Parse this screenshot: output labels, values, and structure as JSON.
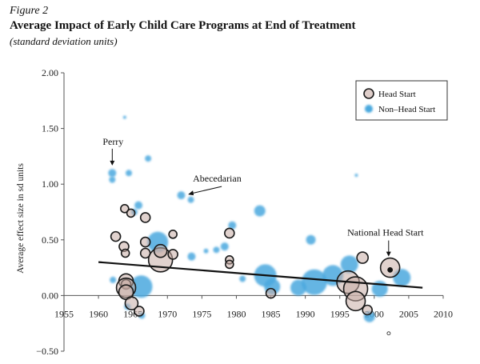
{
  "figure": {
    "label": "Figure 2",
    "title": "Average Impact of Early Child Care Programs at End of Treatment",
    "subtitle": "(standard deviation units)"
  },
  "chart_data": {
    "type": "scatter",
    "ylabel": "Average effect size in sd units",
    "xlim": [
      1955,
      2010
    ],
    "ylim": [
      -0.5,
      2.0
    ],
    "x_ticks": [
      "1955",
      "1960",
      "1965",
      "1970",
      "1975",
      "1980",
      "1985",
      "1990",
      "1995",
      "2000",
      "2005",
      "2010"
    ],
    "y_ticks": [
      "−0.50",
      "0.00",
      "0.50",
      "1.00",
      "1.50",
      "2.00"
    ],
    "legend": {
      "position": "top-right",
      "entries": [
        "Head Start",
        "Non–Head Start"
      ]
    },
    "colors": {
      "head_start": "#c9ada6",
      "non_head_start": "#4aa8de",
      "trend": "#111111",
      "axis": "#555555"
    },
    "annotations": [
      {
        "text": "Perry",
        "x": 1962.0,
        "y": 1.11
      },
      {
        "text": "Abecedarian",
        "x": 1972.3,
        "y": 0.9
      },
      {
        "text": "National Head Start",
        "x": 2002.2,
        "y": 0.25
      }
    ],
    "trend_line": {
      "x": [
        1960,
        2007
      ],
      "y": [
        0.3,
        0.07
      ]
    },
    "series": [
      {
        "name": "Head Start",
        "points": [
          {
            "x": 1962.5,
            "y": 0.53,
            "r": 6
          },
          {
            "x": 1963.8,
            "y": 0.78,
            "r": 5
          },
          {
            "x": 1963.7,
            "y": 0.44,
            "r": 6
          },
          {
            "x": 1963.9,
            "y": 0.38,
            "r": 5
          },
          {
            "x": 1964.7,
            "y": 0.74,
            "r": 5
          },
          {
            "x": 1964.0,
            "y": 0.13,
            "r": 9
          },
          {
            "x": 1964.0,
            "y": 0.1,
            "r": 6
          },
          {
            "x": 1964.0,
            "y": 0.07,
            "r": 12
          },
          {
            "x": 1964.0,
            "y": 0.03,
            "r": 9
          },
          {
            "x": 1964.8,
            "y": -0.07,
            "r": 8
          },
          {
            "x": 1965.9,
            "y": -0.14,
            "r": 6
          },
          {
            "x": 1966.8,
            "y": 0.7,
            "r": 6
          },
          {
            "x": 1966.8,
            "y": 0.48,
            "r": 6
          },
          {
            "x": 1966.8,
            "y": 0.38,
            "r": 6
          },
          {
            "x": 1969.0,
            "y": 0.32,
            "r": 15
          },
          {
            "x": 1969.0,
            "y": 0.4,
            "r": 8
          },
          {
            "x": 1970.8,
            "y": 0.55,
            "r": 5
          },
          {
            "x": 1970.8,
            "y": 0.37,
            "r": 6
          },
          {
            "x": 1979.0,
            "y": 0.56,
            "r": 6
          },
          {
            "x": 1979.0,
            "y": 0.32,
            "r": 5
          },
          {
            "x": 1979.0,
            "y": 0.28,
            "r": 5
          },
          {
            "x": 1985.0,
            "y": 0.02,
            "r": 6
          },
          {
            "x": 1996.2,
            "y": 0.12,
            "r": 14
          },
          {
            "x": 1997.3,
            "y": 0.06,
            "r": 15
          },
          {
            "x": 1997.3,
            "y": -0.05,
            "r": 12
          },
          {
            "x": 1998.3,
            "y": 0.34,
            "r": 7
          },
          {
            "x": 1999.0,
            "y": -0.13,
            "r": 6
          },
          {
            "x": 2002.3,
            "y": 0.25,
            "r": 12
          },
          {
            "x": 2002.3,
            "y": 0.23,
            "r": 3
          },
          {
            "x": 2002.1,
            "y": -0.34,
            "r": 2
          }
        ]
      },
      {
        "name": "Non–Head Start",
        "points": [
          {
            "x": 1962.0,
            "y": 1.1,
            "r": 5
          },
          {
            "x": 1962.0,
            "y": 1.04,
            "r": 4
          },
          {
            "x": 1962.1,
            "y": 0.14,
            "r": 4
          },
          {
            "x": 1963.8,
            "y": 1.6,
            "r": 2
          },
          {
            "x": 1964.4,
            "y": 1.1,
            "r": 4
          },
          {
            "x": 1964.2,
            "y": -0.1,
            "r": 4
          },
          {
            "x": 1965.2,
            "y": 0.75,
            "r": 4
          },
          {
            "x": 1965.8,
            "y": 0.81,
            "r": 5
          },
          {
            "x": 1966.2,
            "y": 0.08,
            "r": 14
          },
          {
            "x": 1966.3,
            "y": -0.18,
            "r": 4
          },
          {
            "x": 1967.2,
            "y": 1.23,
            "r": 4
          },
          {
            "x": 1968.6,
            "y": 0.48,
            "r": 13
          },
          {
            "x": 1972.0,
            "y": 0.9,
            "r": 5
          },
          {
            "x": 1973.4,
            "y": 0.86,
            "r": 4
          },
          {
            "x": 1973.5,
            "y": 0.35,
            "r": 5
          },
          {
            "x": 1975.6,
            "y": 0.4,
            "r": 3
          },
          {
            "x": 1977.1,
            "y": 0.41,
            "r": 4
          },
          {
            "x": 1978.3,
            "y": 0.44,
            "r": 5
          },
          {
            "x": 1979.4,
            "y": 0.63,
            "r": 5
          },
          {
            "x": 1980.9,
            "y": 0.15,
            "r": 4
          },
          {
            "x": 1983.4,
            "y": 0.76,
            "r": 7
          },
          {
            "x": 1984.2,
            "y": 0.18,
            "r": 14
          },
          {
            "x": 1985.2,
            "y": 0.08,
            "r": 10
          },
          {
            "x": 1989.0,
            "y": 0.07,
            "r": 10
          },
          {
            "x": 1990.8,
            "y": 0.5,
            "r": 6
          },
          {
            "x": 1991.3,
            "y": 0.12,
            "r": 16
          },
          {
            "x": 1994.0,
            "y": 0.18,
            "r": 13
          },
          {
            "x": 1996.4,
            "y": 0.28,
            "r": 11
          },
          {
            "x": 1997.4,
            "y": 1.08,
            "r": 2
          },
          {
            "x": 1999.3,
            "y": -0.19,
            "r": 7
          },
          {
            "x": 2000.8,
            "y": 0.06,
            "r": 10
          },
          {
            "x": 2004.0,
            "y": 0.16,
            "r": 11
          }
        ]
      }
    ]
  }
}
